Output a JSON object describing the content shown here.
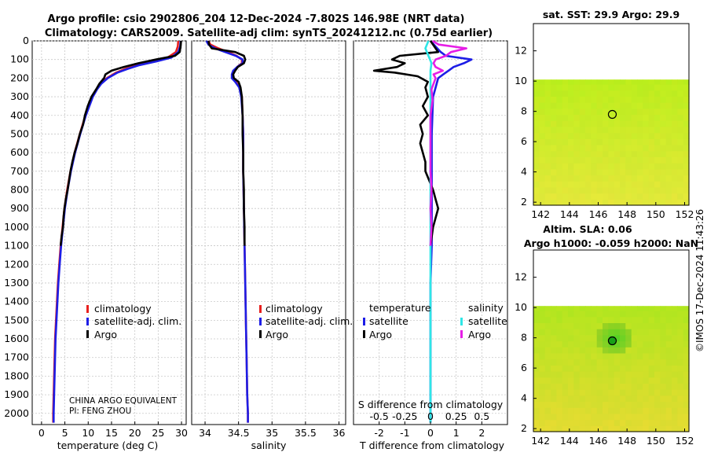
{
  "figure": {
    "title_line1": "Argo profile: csio 2902806_204 12-Dec-2024 -7.802S 146.98E (NRT data)",
    "title_line2": "Climatology: CARS2009. Satellite-adj clim: synTS_20241212.nc (0.75d earlier)",
    "credit": "©IMOS 17-Dec-2024 11:43:26",
    "float_owner": "CHINA ARGO EQUIVALENT",
    "pi": "PI: FENG ZHOU"
  },
  "colors": {
    "argo": "#000000",
    "climatology": "#e8201e",
    "satellite": "#1d1de6",
    "sal_satellite": "#2ee6e6",
    "sal_argo": "#e61ee6",
    "map_green": "#b6ee1c",
    "map_yellow": "#dfe83a"
  },
  "legends": {
    "temp": [
      "climatology",
      "satellite-adj. clim.",
      "Argo"
    ],
    "sal": [
      "climatology",
      "satellite-adj. clim.",
      "Argo"
    ],
    "diff_head_t": "temperature",
    "diff_head_s": "salinity",
    "diff_t": [
      "satellite",
      "Argo"
    ],
    "diff_s": [
      "satellite",
      "Argo"
    ]
  },
  "chart_data": [
    {
      "type": "line",
      "name": "temperature",
      "xlabel": "temperature (deg C)",
      "ylabel": "",
      "xlim": [
        -2,
        31
      ],
      "ylim": [
        2060,
        0
      ],
      "xticks": [
        0,
        5,
        10,
        15,
        20,
        25,
        30
      ],
      "yticks": [
        0,
        100,
        200,
        300,
        400,
        500,
        600,
        700,
        800,
        900,
        1000,
        1100,
        1200,
        1300,
        1400,
        1500,
        1600,
        1700,
        1800,
        1900,
        2000
      ],
      "series": [
        {
          "name": "climatology",
          "depth": [
            0,
            30,
            60,
            90,
            110,
            130,
            150,
            170,
            200,
            230,
            260,
            300,
            400,
            500,
            600,
            700,
            800,
            900,
            1000,
            1100,
            1200,
            1300,
            1400,
            1500,
            1600,
            1700,
            1800,
            1900,
            2000,
            2050
          ],
          "values": [
            29.3,
            29.2,
            28.8,
            27.0,
            24.0,
            20.5,
            18.0,
            16.0,
            14.0,
            12.7,
            11.8,
            10.9,
            9.4,
            8.2,
            7.1,
            6.2,
            5.5,
            4.9,
            4.5,
            4.1,
            3.8,
            3.5,
            3.3,
            3.1,
            2.9,
            2.8,
            2.7,
            2.6,
            2.5,
            2.5
          ]
        },
        {
          "name": "satellite-adj. clim.",
          "depth": [
            0,
            30,
            60,
            90,
            110,
            130,
            150,
            170,
            200,
            230,
            260,
            300,
            400,
            500,
            600,
            700,
            800,
            900,
            1000,
            1100,
            1200,
            1300,
            1400,
            1500,
            1600,
            1700,
            1800,
            1900,
            2000,
            2050
          ],
          "values": [
            29.8,
            29.7,
            29.3,
            27.8,
            24.6,
            21.0,
            18.5,
            16.3,
            14.2,
            12.8,
            11.9,
            11.0,
            9.5,
            8.3,
            7.2,
            6.3,
            5.6,
            5.0,
            4.6,
            4.2,
            3.9,
            3.6,
            3.4,
            3.2,
            3.0,
            2.9,
            2.8,
            2.7,
            2.6,
            2.6
          ]
        },
        {
          "name": "Argo",
          "depth": [
            0,
            30,
            60,
            80,
            100,
            120,
            140,
            160,
            180,
            200,
            230,
            260,
            300,
            350,
            400,
            450,
            500,
            550,
            600,
            650,
            700,
            750,
            800,
            850,
            900,
            950,
            1000,
            1050,
            1100
          ],
          "values": [
            29.9,
            29.8,
            29.6,
            28.6,
            24.5,
            20.8,
            17.6,
            15.0,
            13.7,
            13.4,
            12.4,
            11.7,
            10.7,
            9.9,
            9.3,
            8.9,
            8.2,
            7.7,
            7.1,
            6.6,
            6.2,
            5.9,
            5.6,
            5.2,
            4.9,
            4.7,
            4.6,
            4.3,
            4.1
          ]
        }
      ]
    },
    {
      "type": "line",
      "name": "salinity",
      "xlabel": "salinity",
      "ylabel": "",
      "xlim": [
        33.8,
        36.1
      ],
      "ylim": [
        2060,
        0
      ],
      "xticks": [
        34,
        34.5,
        35,
        35.5,
        36
      ],
      "series": [
        {
          "name": "climatology",
          "depth": [
            0,
            20,
            40,
            60,
            80,
            100,
            120,
            140,
            160,
            180,
            200,
            220,
            250,
            300,
            400,
            500,
            700,
            900,
            1100,
            1300,
            1500,
            1700,
            1900,
            2000,
            2050
          ],
          "values": [
            34.05,
            34.08,
            34.2,
            34.34,
            34.47,
            34.55,
            34.55,
            34.48,
            34.43,
            34.41,
            34.41,
            34.46,
            34.52,
            34.55,
            34.56,
            34.57,
            34.57,
            34.58,
            34.59,
            34.6,
            34.61,
            34.62,
            34.63,
            34.64,
            34.64
          ]
        },
        {
          "name": "satellite-adj. clim.",
          "depth": [
            0,
            20,
            40,
            60,
            80,
            100,
            120,
            140,
            160,
            180,
            200,
            220,
            250,
            300,
            400,
            500,
            700,
            900,
            1100,
            1300,
            1500,
            1700,
            1900,
            2000,
            2050
          ],
          "values": [
            34.02,
            34.05,
            34.15,
            34.3,
            34.46,
            34.56,
            34.56,
            34.48,
            34.42,
            34.4,
            34.4,
            34.45,
            34.51,
            34.54,
            34.56,
            34.57,
            34.57,
            34.58,
            34.59,
            34.6,
            34.61,
            34.62,
            34.63,
            34.64,
            34.64
          ]
        },
        {
          "name": "Argo",
          "depth": [
            0,
            20,
            40,
            60,
            80,
            100,
            120,
            140,
            160,
            180,
            200,
            220,
            250,
            300,
            400,
            500,
            600,
            700,
            800,
            900,
            1000,
            1100
          ],
          "values": [
            34.05,
            34.06,
            34.1,
            34.45,
            34.58,
            34.6,
            34.58,
            34.49,
            34.45,
            34.42,
            34.43,
            34.5,
            34.53,
            34.55,
            34.56,
            34.56,
            34.57,
            34.57,
            34.58,
            34.58,
            34.59,
            34.59
          ]
        }
      ]
    },
    {
      "type": "line",
      "name": "difference from climatology",
      "xlabel": "T difference from climatology",
      "xlabel_top": "S difference from climatology",
      "xlim": [
        -3,
        3
      ],
      "ylim": [
        2060,
        0
      ],
      "xticks": [
        -2,
        -1,
        0,
        1,
        2
      ],
      "xticks_s": [
        -0.5,
        -0.25,
        0,
        0.25,
        0.5
      ],
      "series": [
        {
          "name": "temperature satellite",
          "depth": [
            0,
            30,
            60,
            80,
            100,
            120,
            140,
            160,
            180,
            200,
            300,
            500,
            700,
            900,
            1100,
            1300,
            1500,
            1700,
            1900,
            2050
          ],
          "values": [
            0.0,
            0.2,
            0.4,
            0.6,
            1.6,
            1.3,
            0.9,
            0.7,
            0.5,
            0.3,
            0.1,
            0.05,
            0.05,
            0.05,
            0.05,
            0.0,
            0.0,
            0.0,
            0.0,
            0.0
          ]
        },
        {
          "name": "temperature Argo",
          "depth": [
            0,
            60,
            80,
            100,
            120,
            140,
            160,
            170,
            190,
            220,
            250,
            300,
            350,
            400,
            450,
            500,
            550,
            600,
            650,
            700,
            800,
            850,
            900,
            1000,
            1100
          ],
          "values": [
            0.0,
            0.3,
            -1.2,
            -1.5,
            -1.0,
            -1.3,
            -2.2,
            -1.4,
            -0.5,
            -0.1,
            -0.2,
            -0.1,
            -0.3,
            -0.1,
            -0.4,
            -0.3,
            -0.4,
            -0.3,
            -0.2,
            -0.2,
            0.1,
            0.2,
            0.3,
            0.1,
            0.0
          ]
        },
        {
          "name": "salinity satellite",
          "depth": [
            0,
            40,
            80,
            120,
            160,
            200,
            300,
            500,
            700,
            900,
            1100,
            1300,
            1500,
            1700,
            1900,
            2050
          ],
          "values": [
            -0.02,
            -0.05,
            -0.02,
            0.01,
            0.0,
            0.0,
            0.0,
            0.0,
            0.0,
            0.0,
            0.0,
            0.0,
            0.0,
            0.0,
            0.0,
            0.0
          ]
        },
        {
          "name": "salinity Argo",
          "depth": [
            0,
            20,
            40,
            60,
            80,
            100,
            120,
            140,
            160,
            180,
            200,
            260,
            320,
            400,
            500,
            600,
            700,
            800,
            900,
            1000,
            1100
          ],
          "values": [
            0.02,
            0.08,
            0.35,
            0.2,
            0.15,
            0.05,
            0.03,
            0.05,
            0.12,
            0.03,
            0.05,
            0.01,
            0.02,
            0.0,
            0.0,
            0.0,
            0.0,
            0.01,
            0.0,
            0.01,
            0.0
          ]
        }
      ]
    }
  ],
  "maps": [
    {
      "name": "sst-map",
      "title": "sat. SST: 29.9 Argo: 29.9",
      "xticks": [
        142,
        144,
        146,
        148,
        150,
        152
      ],
      "yticks": [
        2,
        4,
        6,
        8,
        10,
        12
      ],
      "xlim": [
        141.5,
        152.3
      ],
      "ylim": [
        1.8,
        13.8
      ],
      "data_top_lat": 10.1,
      "float_lon": 146.98,
      "float_lat": 7.8
    },
    {
      "name": "sla-map",
      "title": "Altim. SLA: 0.06",
      "subtitle": "Argo h1000: -0.059 h2000: NaN",
      "xticks": [
        142,
        144,
        146,
        148,
        150,
        152
      ],
      "yticks": [
        2,
        4,
        6,
        8,
        10,
        12
      ],
      "xlim": [
        141.5,
        152.3
      ],
      "ylim": [
        1.8,
        13.8
      ],
      "data_top_lat": 10.1,
      "float_lon": 146.98,
      "float_lat": 7.8
    }
  ]
}
